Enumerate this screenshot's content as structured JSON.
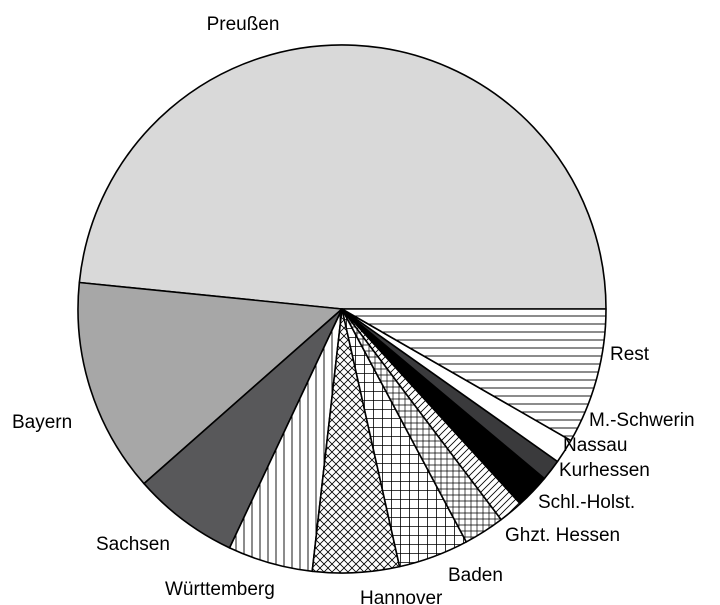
{
  "chart_data": {
    "type": "pie",
    "start": "east",
    "direction": "counterclockwise",
    "title": "",
    "slices": [
      {
        "label": "Preußen",
        "value": 48.4,
        "color": "#d9d9d9",
        "pattern": "solid"
      },
      {
        "label": "Bayern",
        "value": 13.1,
        "color": "#a7a7a7",
        "pattern": "solid"
      },
      {
        "label": "Sachsen",
        "value": 6.5,
        "color": "#58585a",
        "pattern": "solid"
      },
      {
        "label": "Württemberg",
        "value": 5.2,
        "color": "#ffffff",
        "pattern": "vertical-lines"
      },
      {
        "label": "Hannover",
        "value": 5.3,
        "color": "#ffffff",
        "pattern": "crosshatch"
      },
      {
        "label": "Baden",
        "value": 4.3,
        "color": "#ffffff",
        "pattern": "grid"
      },
      {
        "label": "Ghzt. Hessen",
        "value": 2.5,
        "color": "#ffffff",
        "pattern": "grid-small"
      },
      {
        "label": "Schl.-Holst.",
        "value": 1.5,
        "color": "#ffffff",
        "pattern": "diagonal-lines"
      },
      {
        "label": "Kurhessen",
        "value": 2.1,
        "color": "#000000",
        "pattern": "solid"
      },
      {
        "label": "Nassau",
        "value": 1.3,
        "color": "#3a3a3c",
        "pattern": "solid"
      },
      {
        "label": "M.-Schwerin",
        "value": 1.5,
        "color": "#ffffff",
        "pattern": "solid"
      },
      {
        "label": "Rest",
        "value": 8.3,
        "color": "#ffffff",
        "pattern": "horizontal-lines"
      }
    ]
  }
}
